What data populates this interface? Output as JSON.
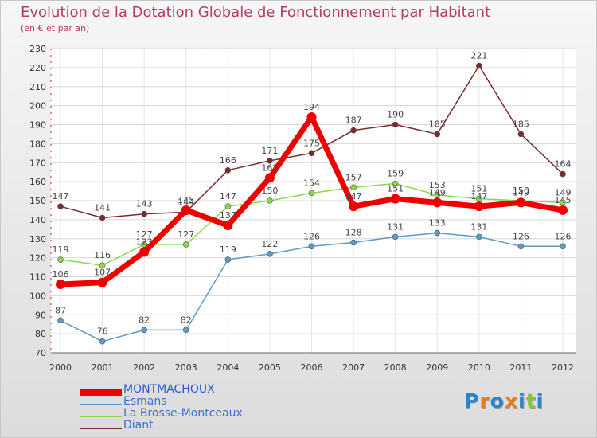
{
  "chart_data": {
    "type": "line",
    "title": "Evolution de la Dotation Globale de Fonctionnement par Habitant",
    "subtitle": "(en € et par an)",
    "xlabel": "",
    "ylabel": "",
    "ylim": [
      70,
      230
    ],
    "y_ticks": [
      70,
      80,
      90,
      100,
      110,
      120,
      130,
      140,
      150,
      160,
      170,
      180,
      190,
      200,
      210,
      220,
      230
    ],
    "grid": true,
    "legend_position": "bottom-left",
    "categories": [
      "2000",
      "2001",
      "2002",
      "2003",
      "2004",
      "2005",
      "2006",
      "2007",
      "2008",
      "2009",
      "2010",
      "2011",
      "2012"
    ],
    "series": [
      {
        "name": "MONTMACHOUX",
        "color": "#ee0000",
        "values": [
          106,
          107,
          123,
          145,
          137,
          162,
          194,
          147,
          151,
          149,
          147,
          149,
          145
        ]
      },
      {
        "name": "Esmans",
        "color": "#5b9bc8",
        "values": [
          87,
          76,
          82,
          82,
          119,
          122,
          126,
          128,
          131,
          133,
          131,
          126,
          126
        ]
      },
      {
        "name": "La Brosse-Montceaux",
        "color": "#88d94a",
        "values": [
          119,
          116,
          127,
          127,
          147,
          150,
          154,
          157,
          159,
          153,
          151,
          150,
          149
        ]
      },
      {
        "name": "Diant",
        "color": "#7a2c2c",
        "values": [
          147,
          141,
          143,
          144,
          166,
          171,
          175,
          187,
          190,
          185,
          221,
          185,
          164
        ]
      }
    ]
  },
  "logo": {
    "letters": [
      "P",
      "r",
      "o",
      "x",
      "i",
      "t",
      "i"
    ],
    "colors": [
      "#2a86c8",
      "#e87c1e",
      "#2a86c8",
      "#e87c1e",
      "#2a86c8",
      "#8cc63f",
      "#2a86c8"
    ]
  }
}
